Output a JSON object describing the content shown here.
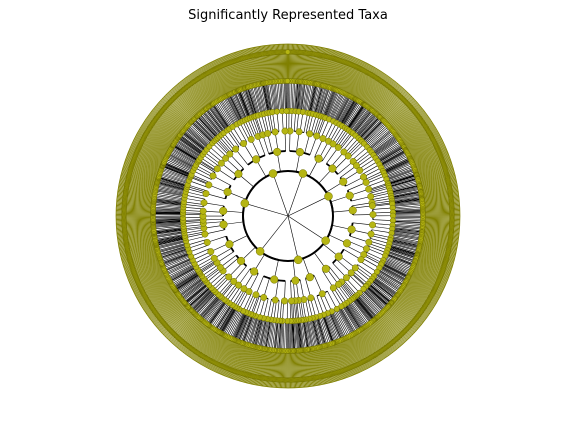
{
  "header": {
    "title": "Significantly Represented Taxa"
  },
  "cladogram": {
    "type": "circular-cladogram",
    "node_color": "#b5b513",
    "node_edge_color": "#6f6f00",
    "branch_color": "#000000",
    "outer_ring_color": "#808000",
    "leaf_count": 330,
    "levels": 6
  }
}
